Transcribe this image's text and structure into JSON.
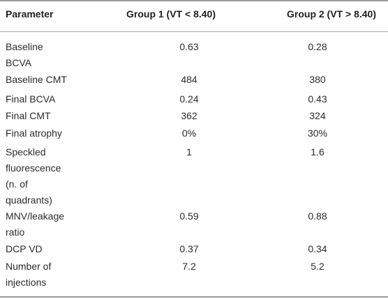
{
  "table": {
    "headers": {
      "parameter": "Parameter",
      "group1": "Group 1 (VT < 8.40)",
      "group2": "Group 2 (VT > 8.40)"
    },
    "rows": [
      {
        "parameter_lines": [
          "Baseline",
          "BCVA"
        ],
        "group1": "0.63",
        "group2": "0.28"
      },
      {
        "parameter_lines": [
          "Baseline CMT"
        ],
        "group1": "484",
        "group2": "380"
      },
      {
        "parameter_lines": [
          "Final BCVA"
        ],
        "group1": "0.24",
        "group2": "0.43"
      },
      {
        "parameter_lines": [
          "Final CMT"
        ],
        "group1": "362",
        "group2": "324"
      },
      {
        "parameter_lines": [
          "Final atrophy"
        ],
        "group1": "0%",
        "group2": "30%"
      },
      {
        "parameter_lines": [
          "Speckled",
          "fluorescence",
          "(n. of",
          "quadrants)"
        ],
        "group1": "1",
        "group2": "1.6"
      },
      {
        "parameter_lines": [
          "MNV/leakage",
          "ratio"
        ],
        "group1": "0.59",
        "group2": "0.88"
      },
      {
        "parameter_lines": [
          "DCP VD"
        ],
        "group1": "0.37",
        "group2": "0.34"
      },
      {
        "parameter_lines": [
          "Number of",
          "injections"
        ],
        "group1": "7.2",
        "group2": "5.2"
      }
    ]
  }
}
